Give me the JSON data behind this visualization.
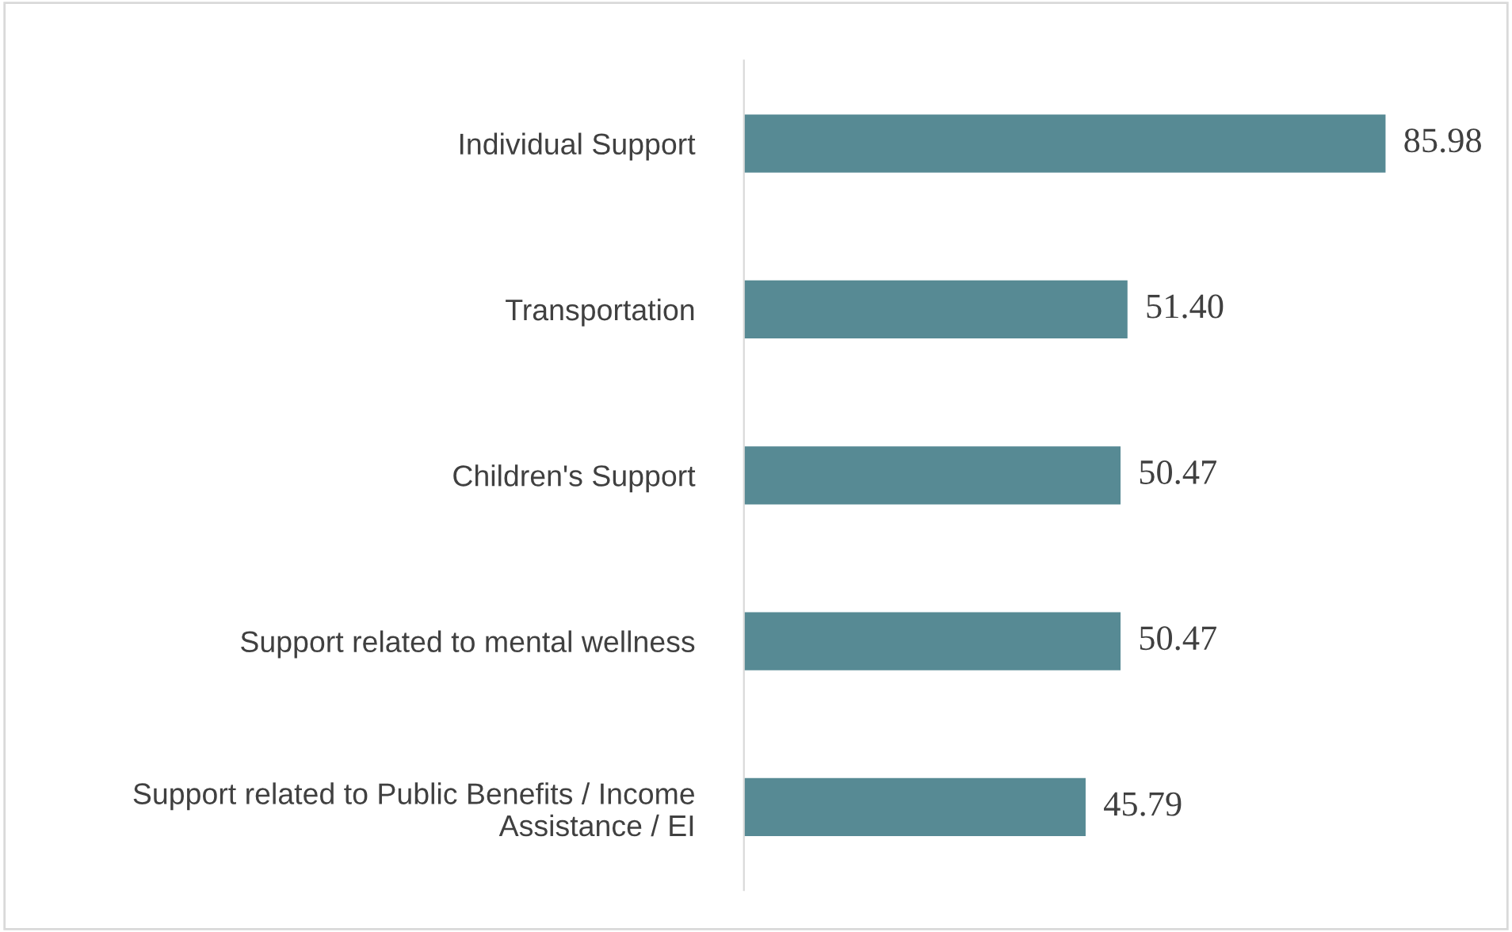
{
  "chart_data": {
    "type": "bar",
    "orientation": "horizontal",
    "categories": [
      "Individual Support",
      "Transportation",
      "Children's Support",
      "Support related to mental wellness",
      "Support related to Public Benefits / Income Assistance / EI"
    ],
    "values": [
      85.98,
      51.4,
      50.47,
      50.47,
      45.79
    ],
    "value_labels": [
      "85.98",
      "51.40",
      "50.47",
      "50.47",
      "45.79"
    ],
    "color": "#578a94",
    "grid": false,
    "legend": false
  }
}
